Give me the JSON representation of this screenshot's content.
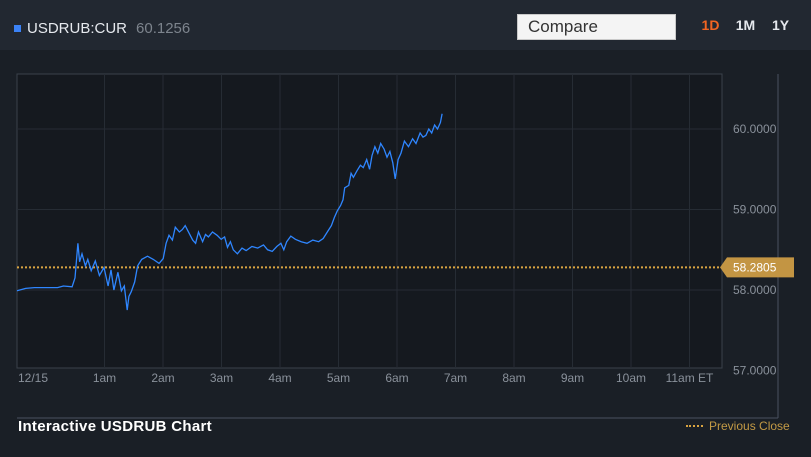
{
  "ticker": {
    "symbol": "USDRUB:CUR",
    "price": "60.1256",
    "swatch_color": "#3b82f6"
  },
  "compare": {
    "label": "Compare"
  },
  "ranges": [
    {
      "label": "1D",
      "active": true
    },
    {
      "label": "1M",
      "active": false
    },
    {
      "label": "1Y",
      "active": false
    }
  ],
  "footer": {
    "title": "Interactive USDRUB Chart",
    "legend_label": "Previous Close"
  },
  "colors": {
    "line": "#2f86ff",
    "previous_close": "#d9a441",
    "background": "#222831",
    "plot": "#15191f"
  },
  "chart_data": {
    "type": "line",
    "title": "",
    "xlabel": "",
    "ylabel": "",
    "x_ticks": [
      "12/15",
      "1am",
      "2am",
      "3am",
      "4am",
      "5am",
      "6am",
      "7am",
      "8am",
      "9am",
      "10am",
      "11am ET"
    ],
    "y_ticks": [
      "60.0000",
      "59.0000",
      "58.0000",
      "57.0000"
    ],
    "ylim": [
      57.0,
      60.4
    ],
    "previous_close": {
      "label": "Previous Close",
      "value": "58.2805"
    },
    "series": [
      {
        "values": [
          [
            0.0,
            57.99
          ],
          [
            0.15,
            58.02
          ],
          [
            0.3,
            58.03
          ],
          [
            0.5,
            58.03
          ],
          [
            0.7,
            58.03
          ],
          [
            0.8,
            58.05
          ],
          [
            0.95,
            58.04
          ],
          [
            1.0,
            58.15
          ],
          [
            1.05,
            58.58
          ],
          [
            1.08,
            58.35
          ],
          [
            1.12,
            58.45
          ],
          [
            1.18,
            58.3
          ],
          [
            1.22,
            58.38
          ],
          [
            1.28,
            58.24
          ],
          [
            1.35,
            58.36
          ],
          [
            1.42,
            58.18
          ],
          [
            1.5,
            58.28
          ],
          [
            1.57,
            58.05
          ],
          [
            1.62,
            58.25
          ],
          [
            1.67,
            58.0
          ],
          [
            1.74,
            58.22
          ],
          [
            1.8,
            57.99
          ],
          [
            1.85,
            58.05
          ],
          [
            1.9,
            57.75
          ],
          [
            1.93,
            57.92
          ],
          [
            1.97,
            57.98
          ],
          [
            2.03,
            58.1
          ],
          [
            2.08,
            58.3
          ],
          [
            2.15,
            58.38
          ],
          [
            2.25,
            58.42
          ],
          [
            2.35,
            58.38
          ],
          [
            2.45,
            58.33
          ],
          [
            2.52,
            58.39
          ],
          [
            2.57,
            58.58
          ],
          [
            2.62,
            58.68
          ],
          [
            2.68,
            58.62
          ],
          [
            2.73,
            58.78
          ],
          [
            2.8,
            58.72
          ],
          [
            2.85,
            58.75
          ],
          [
            2.9,
            58.8
          ],
          [
            2.97,
            58.7
          ],
          [
            3.03,
            58.62
          ],
          [
            3.08,
            58.58
          ],
          [
            3.13,
            58.72
          ],
          [
            3.2,
            58.6
          ],
          [
            3.25,
            58.69
          ],
          [
            3.3,
            58.66
          ],
          [
            3.37,
            58.72
          ],
          [
            3.45,
            58.68
          ],
          [
            3.52,
            58.63
          ],
          [
            3.58,
            58.66
          ],
          [
            3.63,
            58.53
          ],
          [
            3.68,
            58.6
          ],
          [
            3.73,
            58.5
          ],
          [
            3.8,
            58.45
          ],
          [
            3.88,
            58.52
          ],
          [
            3.95,
            58.49
          ],
          [
            4.05,
            58.54
          ],
          [
            4.15,
            58.52
          ],
          [
            4.25,
            58.56
          ],
          [
            4.32,
            58.5
          ],
          [
            4.4,
            58.48
          ],
          [
            4.48,
            58.54
          ],
          [
            4.55,
            58.58
          ],
          [
            4.6,
            58.5
          ],
          [
            4.65,
            58.6
          ],
          [
            4.72,
            58.67
          ],
          [
            4.8,
            58.63
          ],
          [
            4.9,
            58.6
          ],
          [
            5.0,
            58.58
          ],
          [
            5.1,
            58.62
          ],
          [
            5.2,
            58.6
          ],
          [
            5.28,
            58.64
          ],
          [
            5.35,
            58.72
          ],
          [
            5.42,
            58.8
          ],
          [
            5.47,
            58.9
          ],
          [
            5.52,
            58.98
          ],
          [
            5.58,
            59.05
          ],
          [
            5.62,
            59.12
          ],
          [
            5.65,
            59.27
          ],
          [
            5.72,
            59.3
          ],
          [
            5.76,
            59.45
          ],
          [
            5.8,
            59.4
          ],
          [
            5.86,
            59.48
          ],
          [
            5.92,
            59.55
          ],
          [
            5.97,
            59.52
          ],
          [
            6.03,
            59.62
          ],
          [
            6.08,
            59.5
          ],
          [
            6.12,
            59.67
          ],
          [
            6.17,
            59.78
          ],
          [
            6.22,
            59.7
          ],
          [
            6.27,
            59.82
          ],
          [
            6.33,
            59.75
          ],
          [
            6.38,
            59.65
          ],
          [
            6.43,
            59.72
          ],
          [
            6.48,
            59.58
          ],
          [
            6.52,
            59.38
          ],
          [
            6.57,
            59.62
          ],
          [
            6.62,
            59.7
          ],
          [
            6.68,
            59.85
          ],
          [
            6.75,
            59.78
          ],
          [
            6.82,
            59.88
          ],
          [
            6.88,
            59.82
          ],
          [
            6.95,
            59.95
          ],
          [
            7.0,
            59.9
          ],
          [
            7.05,
            59.92
          ],
          [
            7.1,
            60.0
          ],
          [
            7.15,
            59.95
          ],
          [
            7.2,
            60.05
          ],
          [
            7.25,
            60.0
          ],
          [
            7.3,
            60.08
          ],
          [
            7.33,
            60.19
          ]
        ]
      }
    ]
  }
}
